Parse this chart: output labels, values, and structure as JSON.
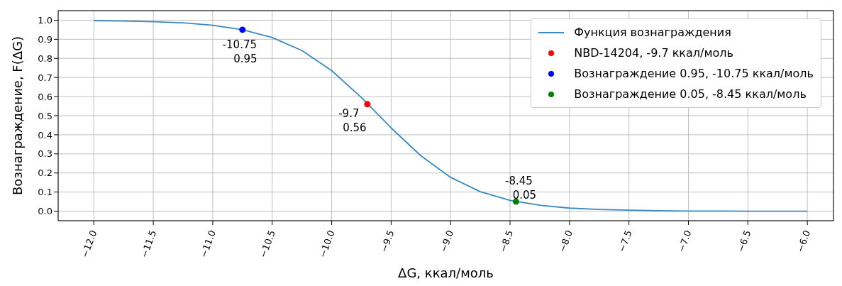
{
  "chart_data": {
    "type": "line",
    "xlabel": "ΔG, ккал/моль",
    "ylabel": "Вознаграждение, F(ΔG)",
    "xlim": [
      -12.3,
      -5.78
    ],
    "ylim": [
      -0.05,
      1.05
    ],
    "xticks": [
      {
        "value": -12,
        "label": "−12.0"
      },
      {
        "value": -11.5,
        "label": "−11.5"
      },
      {
        "value": -11,
        "label": "−11.0"
      },
      {
        "value": -10.5,
        "label": "−10.5"
      },
      {
        "value": -10,
        "label": "−10.0"
      },
      {
        "value": -9.5,
        "label": "−9.5"
      },
      {
        "value": -9,
        "label": "−9.0"
      },
      {
        "value": -8.5,
        "label": "−8.5"
      },
      {
        "value": -8,
        "label": "−8.0"
      },
      {
        "value": -7.5,
        "label": "−7.5"
      },
      {
        "value": -7,
        "label": "−7.0"
      },
      {
        "value": -6.5,
        "label": "−6.5"
      },
      {
        "value": -6,
        "label": "−6.0"
      }
    ],
    "yticks": [
      {
        "value": 0,
        "label": "0.0"
      },
      0.1,
      0.2,
      0.3,
      0.4,
      0.5,
      0.6,
      0.7,
      0.8,
      0.9,
      {
        "value": 1,
        "label": "1.0"
      }
    ],
    "grid": true,
    "legend": "top right",
    "series": [
      {
        "name": "Функция вознаграждения",
        "color": "#3a89c1",
        "marker": "none",
        "line_style": "solid",
        "x": [
          -12,
          -11.75,
          -11.5,
          -11.25,
          -11,
          -10.75,
          -10.5,
          -10.25,
          -10,
          -9.75,
          -9.5,
          -9.25,
          -9,
          -8.75,
          -8.5,
          -8.25,
          -8,
          -7.75,
          -7.5,
          -7.25,
          -7,
          -6.75,
          -6.5,
          -6.25,
          -6
        ],
        "values": [
          0.998,
          0.996,
          0.992,
          0.986,
          0.973,
          0.95,
          0.909,
          0.841,
          0.736,
          0.595,
          0.436,
          0.29,
          0.177,
          0.102,
          0.056,
          0.031,
          0.016,
          0.009,
          0.005,
          0.002,
          0.001,
          0.001,
          0,
          0,
          0
        ]
      },
      {
        "name": "NBD-14204, -9.7 ккал/моль",
        "type": "scatter",
        "color": "#ff0000",
        "marker": "circle",
        "x": [
          -9.7
        ],
        "values": [
          0.56
        ]
      },
      {
        "name": "Вознаграждение 0.95, -10.75 ккал/моль",
        "type": "scatter",
        "color": "#0000ff",
        "marker": "circle",
        "x": [
          -10.75
        ],
        "values": [
          0.95
        ]
      },
      {
        "name": "Вознаграждение 0.05, -8.45 ккал/моль",
        "type": "scatter",
        "color": "#008000",
        "marker": "circle",
        "x": [
          -8.45
        ],
        "values": [
          0.05
        ]
      }
    ],
    "annotations": [
      {
        "text": "-10.75\n0.95",
        "x": -10.75,
        "y": 0.95
      },
      {
        "text": "-9.7\n0.56",
        "x": -9.7,
        "y": 0.56
      },
      {
        "text": "-8.45\n0.05",
        "x": -8.45,
        "y": 0.05
      }
    ]
  }
}
